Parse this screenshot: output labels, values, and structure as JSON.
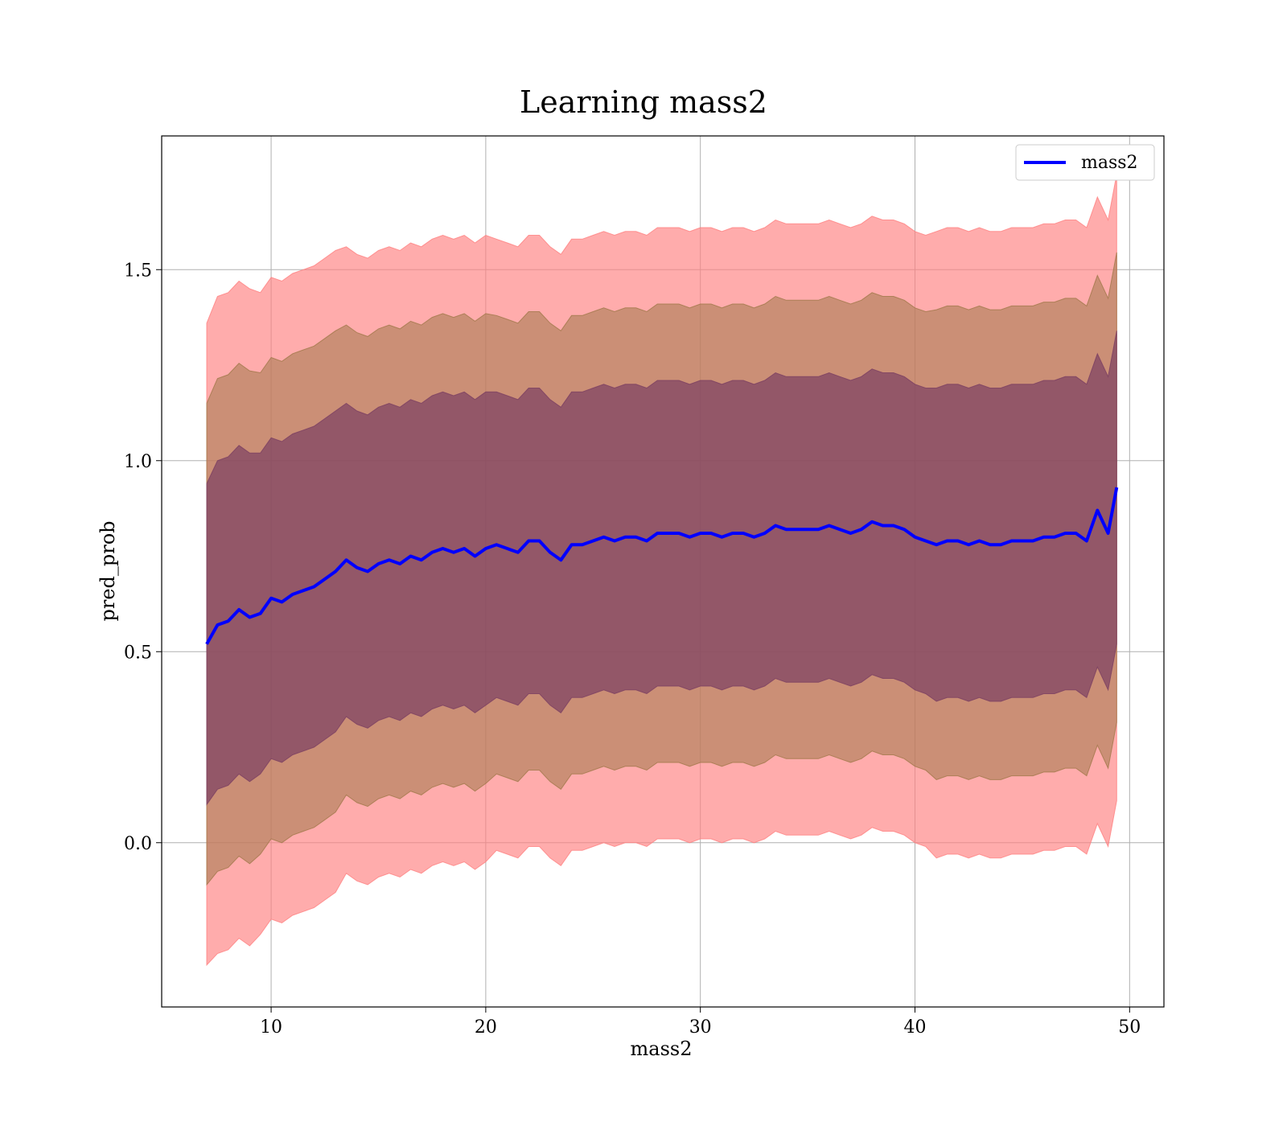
{
  "chart_data": {
    "type": "line",
    "title": "Learning mass2",
    "xlabel": "mass2",
    "ylabel": "pred_prob",
    "xlim": [
      4.9,
      51.6
    ],
    "ylim": [
      -0.43,
      1.85
    ],
    "xticks": [
      10,
      20,
      30,
      40,
      50
    ],
    "yticks": [
      0.0,
      0.5,
      1.0,
      1.5
    ],
    "xtick_labels": [
      "10",
      "20",
      "30",
      "40",
      "50"
    ],
    "ytick_labels": [
      "0.0",
      "0.5",
      "1.0",
      "1.5"
    ],
    "grid": true,
    "legend_position": "top-right",
    "series": [
      {
        "name": "mass2",
        "color": "#0000ff",
        "x": [
          7.0,
          7.5,
          8.0,
          8.5,
          9.0,
          9.5,
          10.0,
          10.5,
          11.0,
          11.5,
          12.0,
          12.5,
          13.0,
          13.5,
          14.0,
          14.5,
          15.0,
          15.5,
          16.0,
          16.5,
          17.0,
          17.5,
          18.0,
          18.5,
          19.0,
          19.5,
          20.0,
          20.5,
          21.0,
          21.5,
          22.0,
          22.5,
          23.0,
          23.5,
          24.0,
          24.5,
          25.0,
          25.5,
          26.0,
          26.5,
          27.0,
          27.5,
          28.0,
          28.5,
          29.0,
          29.5,
          30.0,
          30.5,
          31.0,
          31.5,
          32.0,
          32.5,
          33.0,
          33.5,
          34.0,
          34.5,
          35.0,
          35.5,
          36.0,
          36.5,
          37.0,
          37.5,
          38.0,
          38.5,
          39.0,
          39.5,
          40.0,
          40.5,
          41.0,
          41.5,
          42.0,
          42.5,
          43.0,
          43.5,
          44.0,
          44.5,
          45.0,
          45.5,
          46.0,
          46.5,
          47.0,
          47.5,
          48.0,
          48.5,
          49.0,
          49.4
        ],
        "y": [
          0.52,
          0.57,
          0.58,
          0.61,
          0.59,
          0.6,
          0.64,
          0.63,
          0.65,
          0.66,
          0.67,
          0.69,
          0.71,
          0.74,
          0.72,
          0.71,
          0.73,
          0.74,
          0.73,
          0.75,
          0.74,
          0.76,
          0.77,
          0.76,
          0.77,
          0.75,
          0.77,
          0.78,
          0.77,
          0.76,
          0.79,
          0.79,
          0.76,
          0.74,
          0.78,
          0.78,
          0.79,
          0.8,
          0.79,
          0.8,
          0.8,
          0.79,
          0.81,
          0.81,
          0.81,
          0.8,
          0.81,
          0.81,
          0.8,
          0.81,
          0.81,
          0.8,
          0.81,
          0.83,
          0.82,
          0.82,
          0.82,
          0.82,
          0.83,
          0.82,
          0.81,
          0.82,
          0.84,
          0.83,
          0.83,
          0.82,
          0.8,
          0.79,
          0.78,
          0.79,
          0.79,
          0.78,
          0.79,
          0.78,
          0.78,
          0.79,
          0.79,
          0.79,
          0.8,
          0.8,
          0.81,
          0.81,
          0.79,
          0.87,
          0.81,
          0.93
        ]
      }
    ],
    "bands": [
      {
        "color": "#ff8080",
        "opacity": 0.65,
        "sigma_multiplier": 2,
        "sigma": [
          0.42,
          0.43,
          0.43,
          0.43,
          0.43,
          0.42,
          0.42,
          0.42,
          0.42,
          0.42,
          0.42,
          0.42,
          0.42,
          0.41,
          0.41,
          0.41,
          0.41,
          0.41,
          0.41,
          0.41,
          0.41,
          0.41,
          0.41,
          0.41,
          0.41,
          0.41,
          0.41,
          0.4,
          0.4,
          0.4,
          0.4,
          0.4,
          0.4,
          0.4,
          0.4,
          0.4,
          0.4,
          0.4,
          0.4,
          0.4,
          0.4,
          0.4,
          0.4,
          0.4,
          0.4,
          0.4,
          0.4,
          0.4,
          0.4,
          0.4,
          0.4,
          0.4,
          0.4,
          0.4,
          0.4,
          0.4,
          0.4,
          0.4,
          0.4,
          0.4,
          0.4,
          0.4,
          0.4,
          0.4,
          0.4,
          0.4,
          0.4,
          0.4,
          0.41,
          0.41,
          0.41,
          0.41,
          0.41,
          0.41,
          0.41,
          0.41,
          0.41,
          0.41,
          0.41,
          0.41,
          0.41,
          0.41,
          0.41,
          0.41,
          0.41,
          0.41
        ]
      },
      {
        "color": "#a0784a",
        "opacity": 0.55,
        "sigma_multiplier": 1.5
      },
      {
        "color": "#7a3e62",
        "opacity": 0.7,
        "sigma_multiplier": 1
      }
    ]
  }
}
